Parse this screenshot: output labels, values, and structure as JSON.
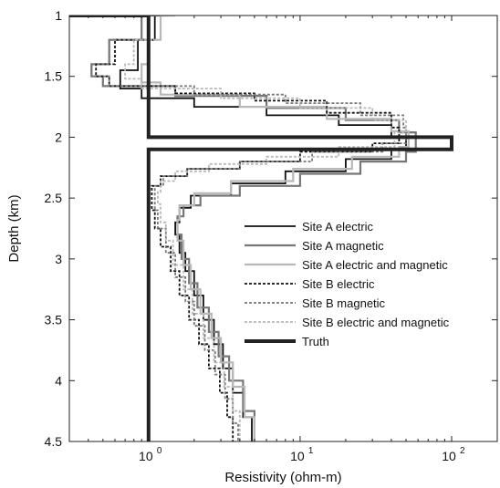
{
  "chart_data": {
    "type": "line",
    "title": "",
    "xlabel": "Resistivity  (ohm-m)",
    "ylabel": "Depth (km)",
    "x_scale": "log",
    "xlim": [
      0.3,
      200
    ],
    "ylim": [
      4.5,
      1.0
    ],
    "y_inverted": true,
    "grid": false,
    "legend_position": "center-right",
    "x_ticks": [
      {
        "value": 1,
        "label": "10",
        "exp": "0"
      },
      {
        "value": 10,
        "label": "10",
        "exp": "1"
      },
      {
        "value": 100,
        "label": "10",
        "exp": "2"
      }
    ],
    "y_ticks": [
      {
        "value": 1,
        "label": "1"
      },
      {
        "value": 1.5,
        "label": "1.5"
      },
      {
        "value": 2,
        "label": "2"
      },
      {
        "value": 2.5,
        "label": "2.5"
      },
      {
        "value": 3,
        "label": "3"
      },
      {
        "value": 3.5,
        "label": "3.5"
      },
      {
        "value": 4,
        "label": "4"
      },
      {
        "value": 4.5,
        "label": "4.5"
      }
    ],
    "series": [
      {
        "name": "Site A electric",
        "color": "#111111",
        "dash": "",
        "width": 1.8,
        "points": [
          [
            1.4,
            1.0
          ],
          [
            1.1,
            1.2
          ],
          [
            0.85,
            1.45
          ],
          [
            0.65,
            1.6
          ],
          [
            0.9,
            1.68
          ],
          [
            2.0,
            1.75
          ],
          [
            6.0,
            1.82
          ],
          [
            18,
            1.9
          ],
          [
            40,
            2.0
          ],
          [
            50,
            2.1
          ],
          [
            40,
            2.18
          ],
          [
            20,
            2.28
          ],
          [
            8,
            2.38
          ],
          [
            3.5,
            2.48
          ],
          [
            1.9,
            2.58
          ],
          [
            1.6,
            2.7
          ],
          [
            1.5,
            2.8
          ],
          [
            1.6,
            2.95
          ],
          [
            1.75,
            3.1
          ],
          [
            2.0,
            3.3
          ],
          [
            2.3,
            3.5
          ],
          [
            2.7,
            3.7
          ],
          [
            3.1,
            3.9
          ],
          [
            3.6,
            4.1
          ],
          [
            4.2,
            4.3
          ],
          [
            4.8,
            4.5
          ]
        ]
      },
      {
        "name": "Site A magnetic",
        "color": "#777777",
        "dash": "",
        "width": 2.2,
        "points": [
          [
            1.3,
            1.0
          ],
          [
            0.9,
            1.2
          ],
          [
            0.55,
            1.4
          ],
          [
            0.42,
            1.5
          ],
          [
            0.5,
            1.58
          ],
          [
            1.5,
            1.66
          ],
          [
            6,
            1.76
          ],
          [
            20,
            1.86
          ],
          [
            45,
            1.96
          ],
          [
            58,
            2.12
          ],
          [
            50,
            2.2
          ],
          [
            25,
            2.3
          ],
          [
            10,
            2.4
          ],
          [
            4,
            2.48
          ],
          [
            2.2,
            2.56
          ],
          [
            1.7,
            2.65
          ],
          [
            1.55,
            2.8
          ],
          [
            1.65,
            3.0
          ],
          [
            1.85,
            3.2
          ],
          [
            2.1,
            3.4
          ],
          [
            2.5,
            3.6
          ],
          [
            2.9,
            3.8
          ],
          [
            3.4,
            4.0
          ],
          [
            4.2,
            4.25
          ],
          [
            5.0,
            4.5
          ]
        ]
      },
      {
        "name": "Site A electric and magnetic",
        "color": "#b8b8b8",
        "dash": "",
        "width": 2.2,
        "points": [
          [
            1.5,
            1.0
          ],
          [
            1.2,
            1.2
          ],
          [
            1.0,
            1.4
          ],
          [
            0.9,
            1.55
          ],
          [
            1.2,
            1.65
          ],
          [
            4,
            1.75
          ],
          [
            15,
            1.85
          ],
          [
            40,
            1.95
          ],
          [
            52,
            2.08
          ],
          [
            45,
            2.16
          ],
          [
            22,
            2.26
          ],
          [
            9,
            2.36
          ],
          [
            3.5,
            2.46
          ],
          [
            2.0,
            2.56
          ],
          [
            1.6,
            2.68
          ],
          [
            1.55,
            2.85
          ],
          [
            1.7,
            3.05
          ],
          [
            1.9,
            3.25
          ],
          [
            2.2,
            3.45
          ],
          [
            2.6,
            3.65
          ],
          [
            3.0,
            3.85
          ],
          [
            3.6,
            4.05
          ],
          [
            4.3,
            4.3
          ],
          [
            5.0,
            4.5
          ]
        ]
      },
      {
        "name": "Site B electric",
        "color": "#111111",
        "dash": "3,2",
        "width": 1.8,
        "points": [
          [
            1.1,
            1.2
          ],
          [
            0.6,
            1.4
          ],
          [
            0.45,
            1.5
          ],
          [
            0.55,
            1.58
          ],
          [
            1.5,
            1.64
          ],
          [
            5,
            1.7
          ],
          [
            15,
            1.8
          ],
          [
            40,
            1.92
          ],
          [
            45,
            2.05
          ],
          [
            30,
            2.12
          ],
          [
            10,
            2.2
          ],
          [
            4,
            2.26
          ],
          [
            1.8,
            2.32
          ],
          [
            1.2,
            2.4
          ],
          [
            1.05,
            2.5
          ],
          [
            1.05,
            2.6
          ],
          [
            1.1,
            2.75
          ],
          [
            1.2,
            2.9
          ],
          [
            1.4,
            3.1
          ],
          [
            1.6,
            3.3
          ],
          [
            1.85,
            3.5
          ],
          [
            2.15,
            3.7
          ],
          [
            2.5,
            3.9
          ],
          [
            2.95,
            4.1
          ],
          [
            3.3,
            4.3
          ],
          [
            3.6,
            4.5
          ]
        ]
      },
      {
        "name": "Site B magnetic",
        "color": "#777777",
        "dash": "3,2",
        "width": 1.8,
        "points": [
          [
            1.0,
            1.2
          ],
          [
            0.55,
            1.4
          ],
          [
            0.42,
            1.5
          ],
          [
            0.55,
            1.58
          ],
          [
            2,
            1.65
          ],
          [
            8,
            1.72
          ],
          [
            25,
            1.82
          ],
          [
            48,
            1.92
          ],
          [
            50,
            2.05
          ],
          [
            35,
            2.12
          ],
          [
            12,
            2.2
          ],
          [
            4,
            2.26
          ],
          [
            1.8,
            2.32
          ],
          [
            1.25,
            2.4
          ],
          [
            1.1,
            2.5
          ],
          [
            1.1,
            2.6
          ],
          [
            1.15,
            2.75
          ],
          [
            1.3,
            2.95
          ],
          [
            1.5,
            3.15
          ],
          [
            1.75,
            3.35
          ],
          [
            2.0,
            3.55
          ],
          [
            2.35,
            3.75
          ],
          [
            2.75,
            3.95
          ],
          [
            3.2,
            4.15
          ],
          [
            3.6,
            4.35
          ],
          [
            3.9,
            4.5
          ]
        ]
      },
      {
        "name": "Site B electric and magnetic",
        "color": "#b8b8b8",
        "dash": "3,2",
        "width": 1.8,
        "points": [
          [
            1.2,
            1.2
          ],
          [
            0.8,
            1.4
          ],
          [
            0.7,
            1.52
          ],
          [
            0.9,
            1.6
          ],
          [
            3,
            1.68
          ],
          [
            10,
            1.76
          ],
          [
            30,
            1.86
          ],
          [
            50,
            1.96
          ],
          [
            42,
            2.08
          ],
          [
            18,
            2.16
          ],
          [
            6,
            2.22
          ],
          [
            2.5,
            2.28
          ],
          [
            1.5,
            2.36
          ],
          [
            1.2,
            2.45
          ],
          [
            1.15,
            2.55
          ],
          [
            1.2,
            2.7
          ],
          [
            1.3,
            2.85
          ],
          [
            1.45,
            3.05
          ],
          [
            1.7,
            3.25
          ],
          [
            1.95,
            3.45
          ],
          [
            2.3,
            3.65
          ],
          [
            2.7,
            3.85
          ],
          [
            3.15,
            4.05
          ],
          [
            3.6,
            4.25
          ],
          [
            4.0,
            4.5
          ]
        ]
      },
      {
        "name": "Truth",
        "color": "#222222",
        "dash": "",
        "width": 4,
        "step": true,
        "points": [
          [
            0.3,
            1.0
          ],
          [
            1,
            1.0
          ],
          [
            1,
            2.0
          ],
          [
            100,
            2.0
          ],
          [
            100,
            2.1
          ],
          [
            1,
            2.1
          ],
          [
            1,
            4.5
          ]
        ]
      }
    ]
  }
}
